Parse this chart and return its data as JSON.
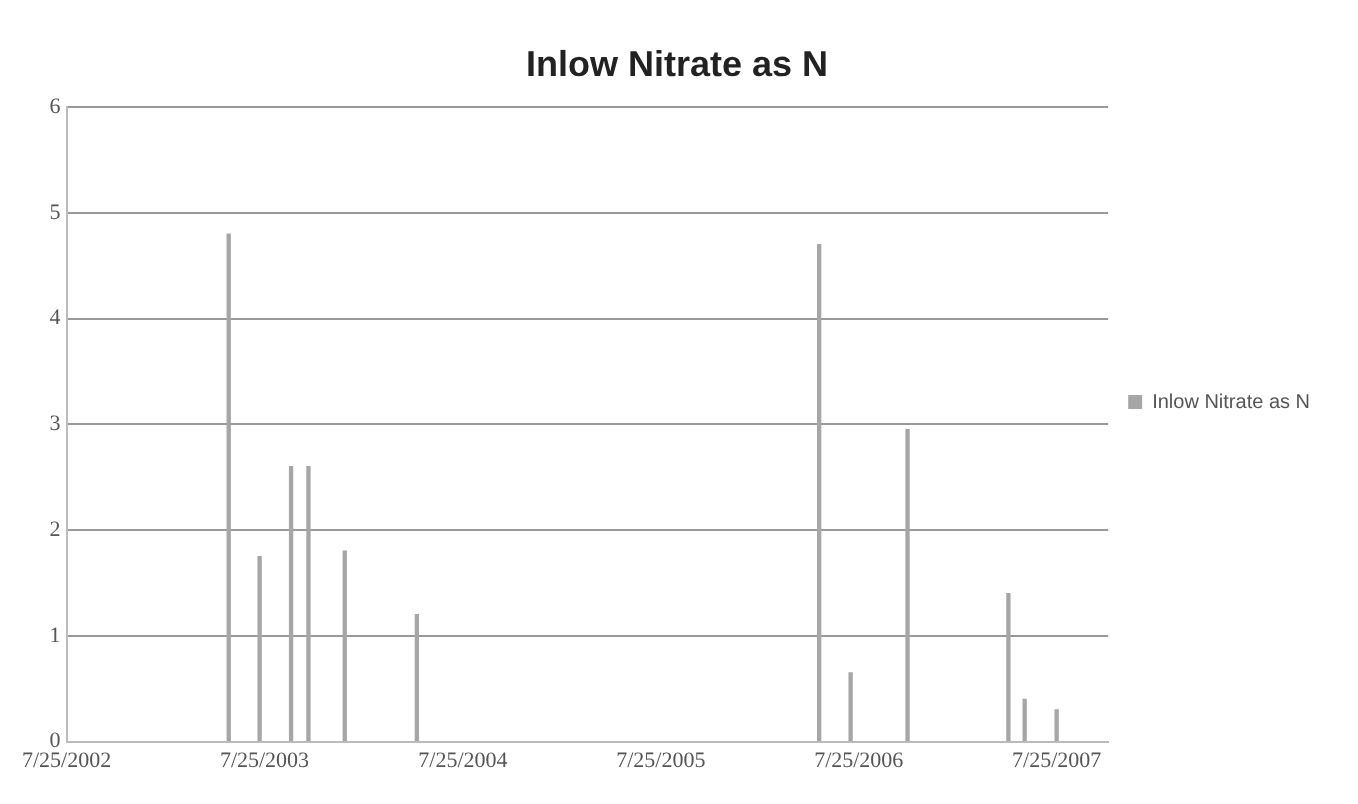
{
  "chart_data": {
    "type": "bar",
    "title": "Inlow Nitrate as N",
    "x": [
      "2003-05-20",
      "2003-07-16",
      "2003-09-12",
      "2003-10-14",
      "2003-12-20",
      "2004-05-01",
      "2006-05-13",
      "2006-07-10",
      "2006-10-23",
      "2007-04-27",
      "2007-05-27",
      "2007-07-25"
    ],
    "series": [
      {
        "name": "Inlow Nitrate as N",
        "color": "#a6a6a6",
        "values": [
          4.8,
          1.75,
          2.6,
          2.6,
          1.8,
          1.2,
          4.7,
          0.65,
          2.95,
          1.4,
          0.4,
          0.3
        ]
      }
    ],
    "xlim": [
      "2002-07-25",
      "2007-10-28"
    ],
    "xticks": [
      {
        "value": "2002-07-25",
        "label": "7/25/2002"
      },
      {
        "value": "2003-07-25",
        "label": "7/25/2003"
      },
      {
        "value": "2004-07-25",
        "label": "7/25/2004"
      },
      {
        "value": "2005-07-25",
        "label": "7/25/2005"
      },
      {
        "value": "2006-07-25",
        "label": "7/25/2006"
      },
      {
        "value": "2007-07-25",
        "label": "7/25/2007"
      }
    ],
    "ylim": [
      0,
      6
    ],
    "yticks": [
      0,
      1,
      2,
      3,
      4,
      5,
      6
    ],
    "grid": "y",
    "legend": "right"
  }
}
